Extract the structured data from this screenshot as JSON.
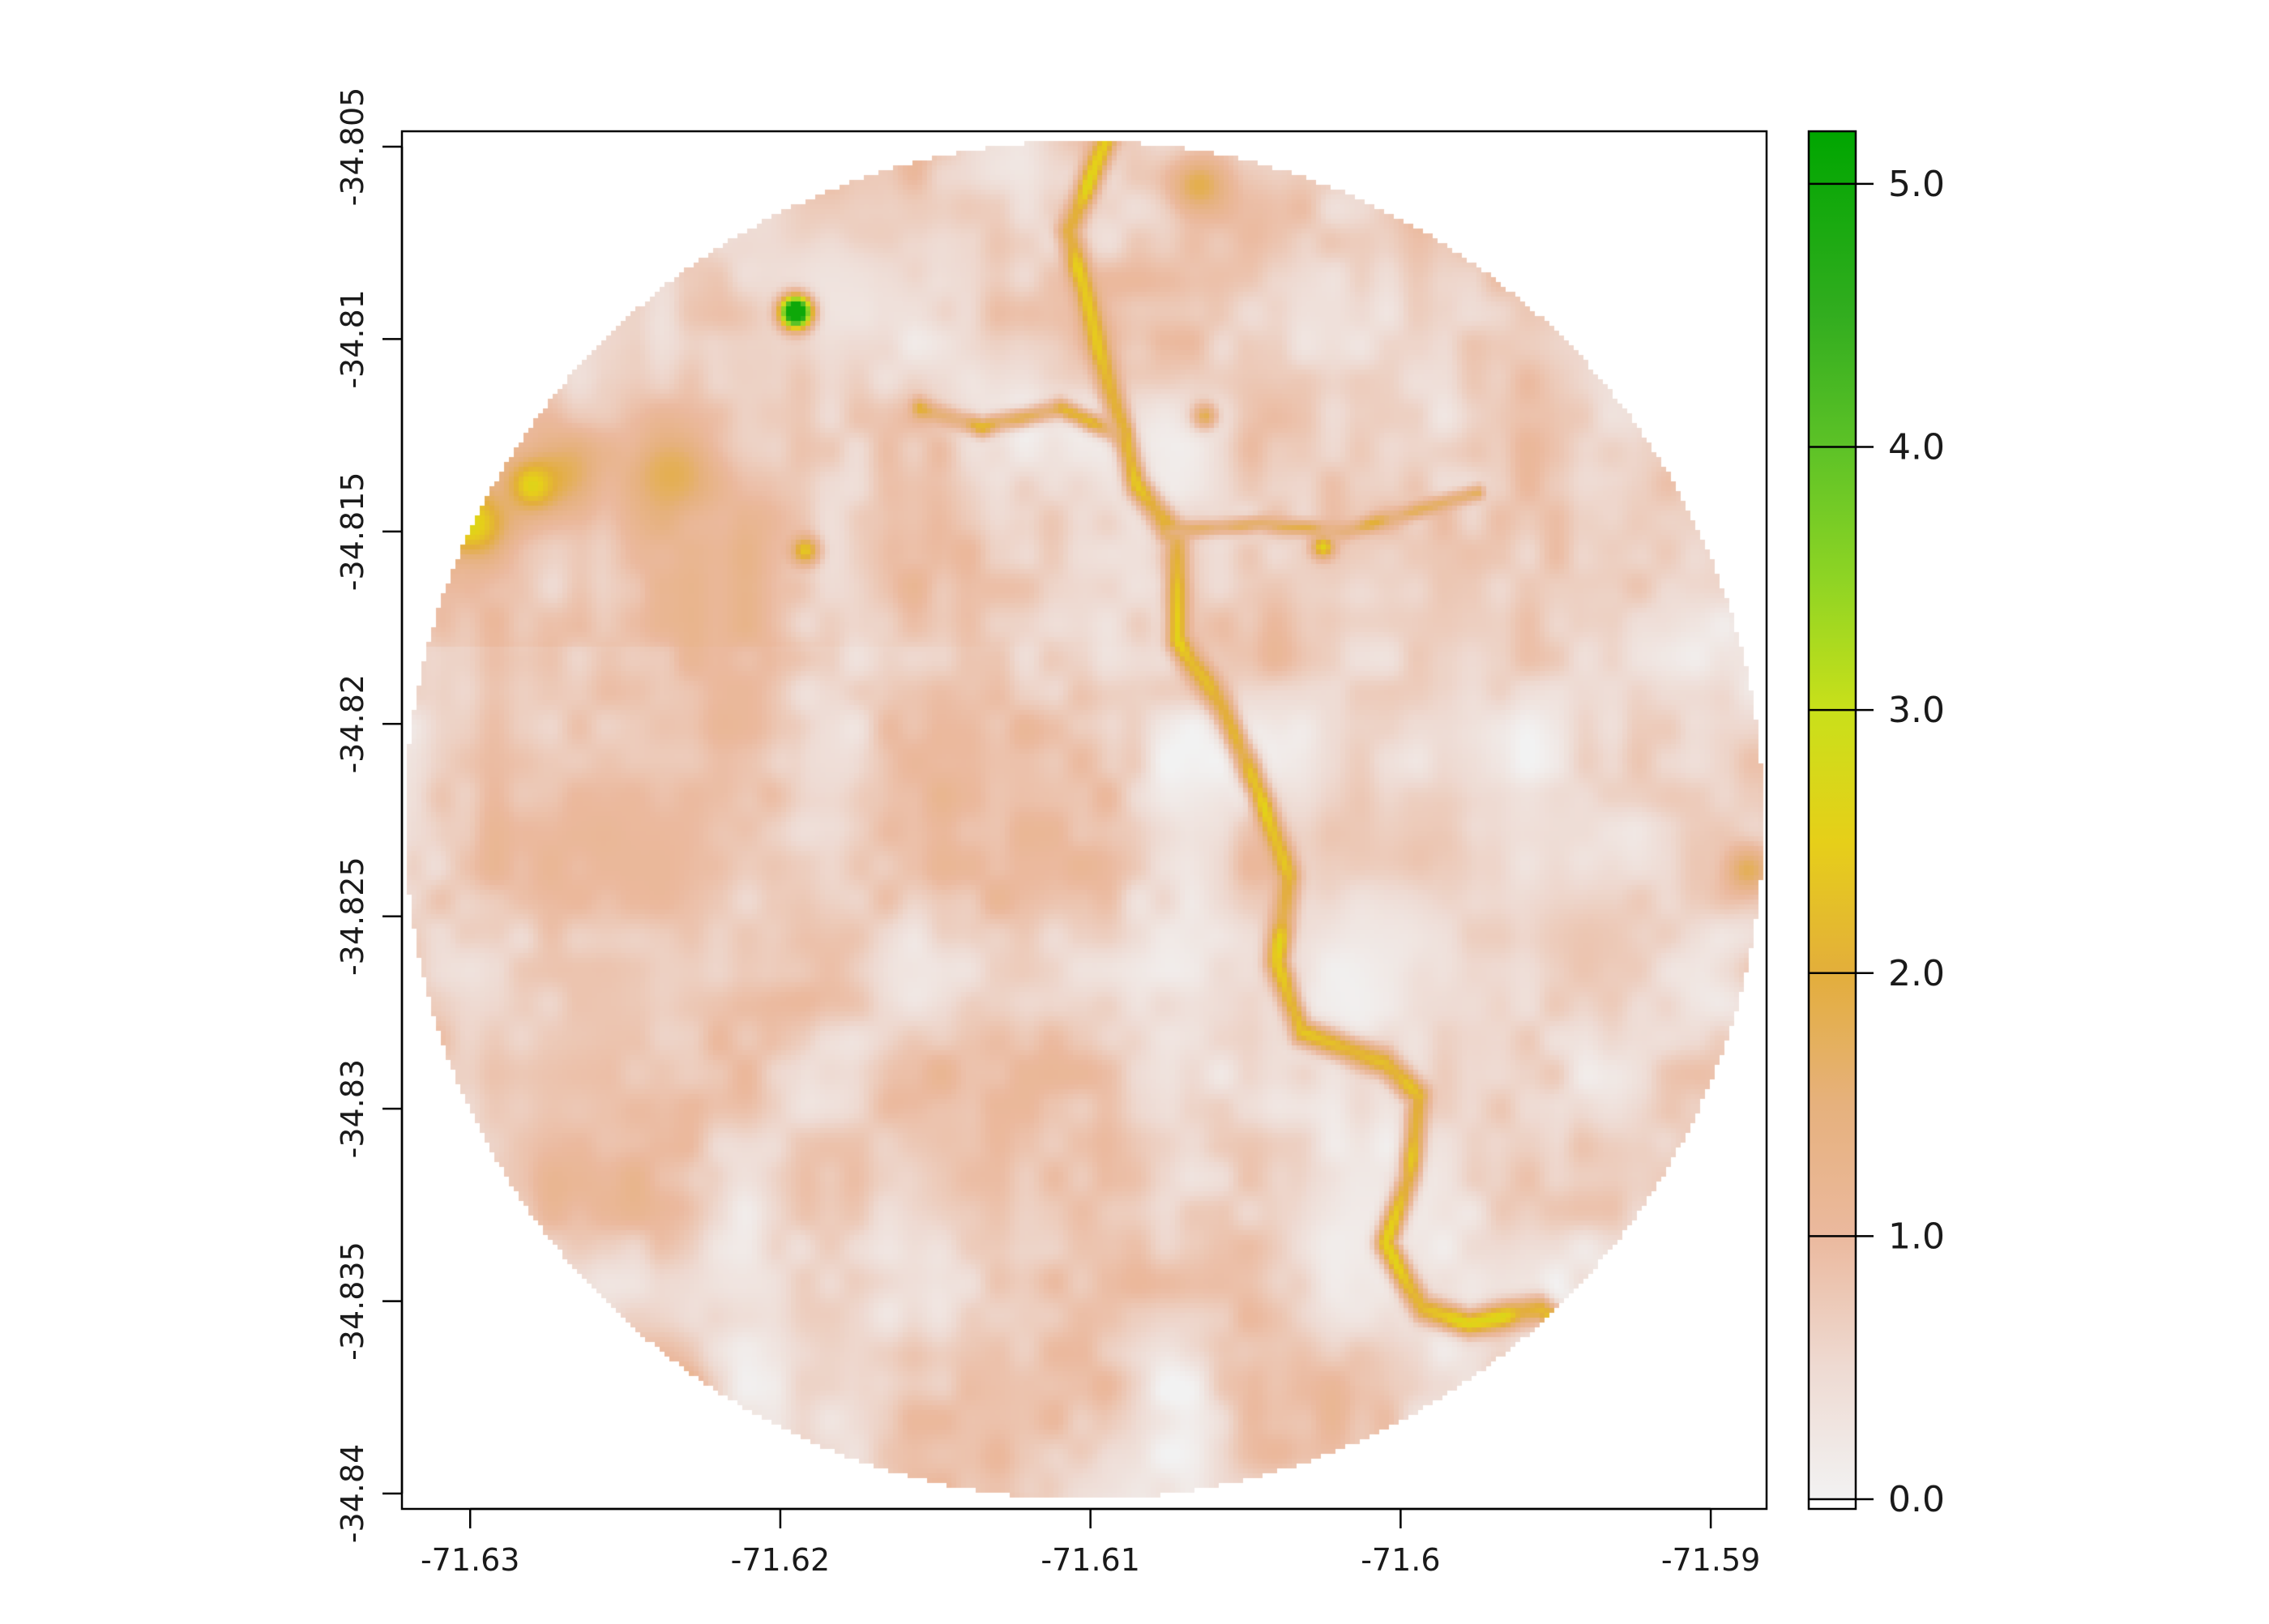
{
  "chart_data": {
    "type": "heatmap",
    "title": "",
    "xlabel": "",
    "ylabel": "",
    "xlim": [
      -71.6322,
      -71.5882
    ],
    "ylim": [
      -34.8404,
      -34.8046
    ],
    "x_ticks": [
      {
        "value": -71.63,
        "label": "-71.63"
      },
      {
        "value": -71.62,
        "label": "-71.62"
      },
      {
        "value": -71.61,
        "label": "-71.61"
      },
      {
        "value": -71.6,
        "label": "-71.6"
      },
      {
        "value": -71.59,
        "label": "-71.59"
      }
    ],
    "y_ticks": [
      {
        "value": -34.805,
        "label": "-34.805"
      },
      {
        "value": -34.81,
        "label": "-34.81"
      },
      {
        "value": -34.815,
        "label": "-34.815"
      },
      {
        "value": -34.82,
        "label": "-34.82"
      },
      {
        "value": -34.825,
        "label": "-34.825"
      },
      {
        "value": -34.83,
        "label": "-34.83"
      },
      {
        "value": -34.835,
        "label": "-34.835"
      },
      {
        "value": -34.84,
        "label": "-34.84"
      }
    ],
    "mask": {
      "shape": "circle",
      "center": [
        -71.6102,
        -34.8225
      ],
      "radius_deg_lon": 0.0219
    },
    "grid": false,
    "legend": {
      "placement": "right",
      "min": 0.0,
      "max": 5.2,
      "ticks": [
        {
          "value": 0.0,
          "label": "0.0"
        },
        {
          "value": 1.0,
          "label": "1.0"
        },
        {
          "value": 2.0,
          "label": "2.0"
        },
        {
          "value": 3.0,
          "label": "3.0"
        },
        {
          "value": 4.0,
          "label": "4.0"
        },
        {
          "value": 5.0,
          "label": "5.0"
        }
      ],
      "color_stops": [
        {
          "value": 0.0,
          "color": "#f2f2f2"
        },
        {
          "value": 0.5,
          "color": "#eedad2"
        },
        {
          "value": 1.0,
          "color": "#ebb99e"
        },
        {
          "value": 1.5,
          "color": "#e6b17d"
        },
        {
          "value": 2.0,
          "color": "#e3ae3b"
        },
        {
          "value": 2.5,
          "color": "#e6cf19"
        },
        {
          "value": 3.0,
          "color": "#c9e01a"
        },
        {
          "value": 3.5,
          "color": "#8ed424"
        },
        {
          "value": 4.0,
          "color": "#5dc227"
        },
        {
          "value": 4.5,
          "color": "#32ad1f"
        },
        {
          "value": 5.2,
          "color": "#00a600"
        }
      ]
    },
    "features": {
      "background_value": 0.55,
      "low_patches": [
        {
          "center": [
            -71.6015,
            -34.8335
          ],
          "r": 0.0025,
          "value": 0.12
        },
        {
          "center": [
            -71.6085,
            -34.8133
          ],
          "r": 0.002,
          "value": 0.2
        },
        {
          "center": [
            -71.6185,
            -34.8085
          ],
          "r": 0.003,
          "value": 0.22
        },
        {
          "center": [
            -71.6002,
            -34.8258
          ],
          "r": 0.003,
          "value": 0.18
        }
      ],
      "medium_patches": [
        {
          "center": [
            -71.6245,
            -34.8225
          ],
          "r": 0.0045,
          "value": 1.05
        },
        {
          "center": [
            -71.6145,
            -34.8318
          ],
          "r": 0.003,
          "value": 1.0
        },
        {
          "center": [
            -71.5935,
            -34.8255
          ],
          "r": 0.0035,
          "value": 0.95
        },
        {
          "center": [
            -71.6265,
            -34.8295
          ],
          "r": 0.0035,
          "value": 1.0
        }
      ],
      "high_patches": [
        {
          "center": [
            -71.627,
            -34.8135
          ],
          "r": 0.0018,
          "value": 1.9
        },
        {
          "center": [
            -71.6235,
            -34.8135
          ],
          "r": 0.0018,
          "value": 1.9
        },
        {
          "center": [
            -71.6233,
            -34.8375
          ],
          "r": 0.001,
          "value": 1.9
        },
        {
          "center": [
            -71.5888,
            -34.8238
          ],
          "r": 0.001,
          "value": 1.9
        },
        {
          "center": [
            -71.6065,
            -34.806
          ],
          "r": 0.0012,
          "value": 2.0
        },
        {
          "center": [
            -71.6063,
            -34.812
          ],
          "r": 0.0005,
          "value": 2.0
        }
      ],
      "very_high_patches": [
        {
          "center": [
            -71.63,
            -34.8148
          ],
          "r": 0.0013,
          "value": 2.8
        },
        {
          "center": [
            -71.628,
            -34.8138
          ],
          "r": 0.0009,
          "value": 2.7
        },
        {
          "center": [
            -71.6192,
            -34.8155
          ],
          "r": 0.0006,
          "value": 2.5
        },
        {
          "center": [
            -71.6025,
            -34.8154
          ],
          "r": 0.00045,
          "value": 2.7
        }
      ],
      "peak_patch": {
        "center": [
          -71.6195,
          -34.8093
        ],
        "r": 0.0006,
        "value": 5.0
      },
      "river": {
        "value": 2.2,
        "width": 0.00035,
        "path": [
          [
            -71.6093,
            -34.8044
          ],
          [
            -71.6107,
            -34.8072
          ],
          [
            -71.6097,
            -34.8103
          ],
          [
            -71.6085,
            -34.8138
          ],
          [
            -71.6072,
            -34.8152
          ],
          [
            -71.6072,
            -34.8178
          ],
          [
            -71.6058,
            -34.8195
          ],
          [
            -71.6046,
            -34.8217
          ],
          [
            -71.6036,
            -34.824
          ],
          [
            -71.604,
            -34.8262
          ],
          [
            -71.6032,
            -34.828
          ],
          [
            -71.6005,
            -34.8288
          ],
          [
            -71.5994,
            -34.8297
          ],
          [
            -71.5997,
            -34.8318
          ],
          [
            -71.6005,
            -34.8335
          ],
          [
            -71.5993,
            -34.8352
          ],
          [
            -71.5978,
            -34.8356
          ],
          [
            -71.5955,
            -34.8352
          ],
          [
            -71.5935,
            -34.8364
          ]
        ]
      },
      "tributary": {
        "value": 1.8,
        "width": 0.00025,
        "path": [
          [
            -71.6155,
            -34.8118
          ],
          [
            -71.6135,
            -34.8123
          ],
          [
            -71.611,
            -34.8118
          ],
          [
            -71.609,
            -34.8125
          ]
        ]
      },
      "tributary_east": {
        "value": 1.7,
        "width": 0.0002,
        "path": [
          [
            -71.6075,
            -34.815
          ],
          [
            -71.6045,
            -34.8148
          ],
          [
            -71.6018,
            -34.815
          ],
          [
            -71.5975,
            -34.814
          ]
        ]
      }
    }
  }
}
